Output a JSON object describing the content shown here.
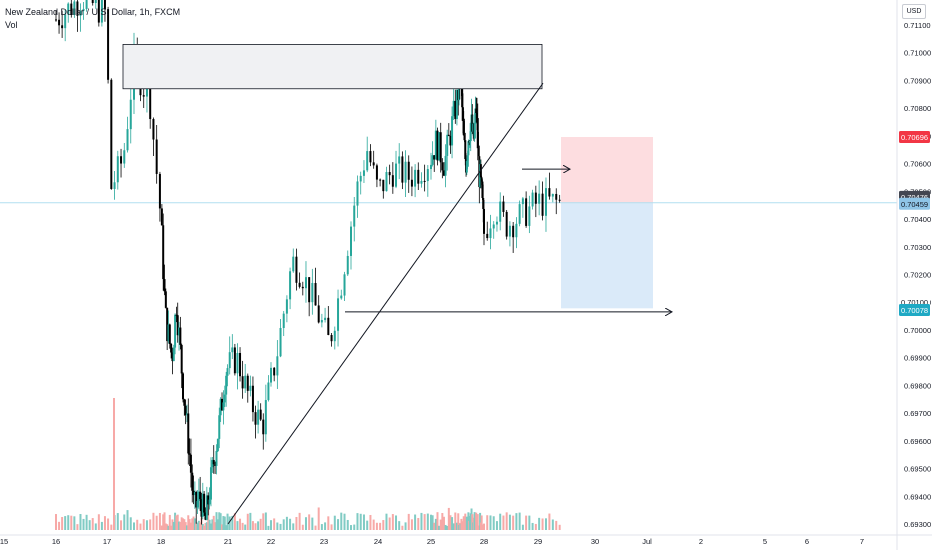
{
  "header": {
    "title": "New Zealand Dollar / U.S. Dollar, 1h, FXCM",
    "volume_label": "Vol",
    "currency_badge": "USD"
  },
  "colors": {
    "up": "#26a69a",
    "down": "#000000",
    "vol_up": "#80cbc4",
    "vol_down": "#f7a9a7",
    "stop_zone": "#fddde0",
    "target_zone": "#daeaf9",
    "box": "#f0f1f3",
    "current_line": "#b2dff0",
    "label_red": "#f23645",
    "label_dark": "#434651",
    "label_blue_light": "#8fc5e7",
    "label_blue": "#2196f3",
    "label_cyan": "#1fa9c4"
  },
  "chart_data": {
    "type": "candlestick",
    "symbol": "NZDUSD",
    "interval": "1h",
    "y_axis": {
      "ylim": [
        0.6926,
        0.7122
      ],
      "ticks": [
        "0.71100",
        "0.71000",
        "0.70900",
        "0.70800",
        "0.70700",
        "0.70600",
        "0.70500",
        "0.70400",
        "0.70300",
        "0.70200",
        "0.70100",
        "0.70000",
        "0.69900",
        "0.69800",
        "0.69700",
        "0.69600",
        "0.69500",
        "0.69400",
        "0.69300"
      ]
    },
    "x_axis": {
      "ticks": [
        "15",
        "16",
        "17",
        "18",
        "21",
        "22",
        "23",
        "24",
        "25",
        "28",
        "29",
        "30",
        "Jul",
        "2",
        "5",
        "6",
        "7"
      ]
    },
    "price_labels": {
      "stop": "0.70696",
      "last": "0.70476",
      "entry": "0.70459",
      "target": "0.70078",
      "hidden": "0.70100"
    },
    "levels": {
      "stop": 0.70696,
      "entry": 0.70459,
      "target": 0.70078,
      "last": 0.70476
    },
    "supply_zone": {
      "top": 0.7103,
      "bottom": 0.7087,
      "from": "17",
      "to": "29"
    },
    "horizontal_rays": [
      {
        "price": 0.7058,
        "from": "28",
        "direction": "right"
      },
      {
        "price": 0.70065,
        "from": "23",
        "direction": "right"
      }
    ],
    "trendline": {
      "from": {
        "x": "21",
        "price": 0.693
      },
      "to": {
        "x": "29",
        "price": 0.7089
      }
    },
    "path": [
      [
        16,
        0.7112
      ],
      [
        16.5,
        0.712
      ],
      [
        17,
        0.7114
      ],
      [
        17.05,
        0.705
      ],
      [
        17.3,
        0.7062
      ],
      [
        17.5,
        0.7096
      ],
      [
        17.8,
        0.7082
      ],
      [
        18,
        0.704
      ],
      [
        18.2,
        0.7005
      ],
      [
        18.5,
        0.699
      ],
      [
        18.7,
        0.701
      ],
      [
        19,
        0.698
      ],
      [
        19.3,
        0.6955
      ],
      [
        19.5,
        0.6935
      ],
      [
        19.8,
        0.694
      ],
      [
        20,
        0.693
      ],
      [
        20.3,
        0.6948
      ],
      [
        20.6,
        0.6965
      ],
      [
        20.9,
        0.6985
      ],
      [
        21.2,
        0.699
      ],
      [
        21.5,
        0.6975
      ],
      [
        21.8,
        0.6965
      ],
      [
        22.1,
        0.699
      ],
      [
        22.4,
        0.7025
      ],
      [
        22.6,
        0.702
      ],
      [
        22.9,
        0.7005
      ],
      [
        23.1,
        0.6995
      ],
      [
        23.3,
        0.7015
      ],
      [
        23.6,
        0.705
      ],
      [
        23.8,
        0.7065
      ],
      [
        24,
        0.705
      ],
      [
        24.3,
        0.7058
      ],
      [
        24.6,
        0.7055
      ],
      [
        24.9,
        0.706
      ],
      [
        25.2,
        0.7068
      ],
      [
        25.5,
        0.706
      ],
      [
        25.8,
        0.7075
      ],
      [
        26,
        0.7085
      ],
      [
        26.2,
        0.7094
      ],
      [
        26.4,
        0.707
      ],
      [
        26.6,
        0.706
      ],
      [
        26.8,
        0.707
      ],
      [
        27,
        0.7075
      ],
      [
        27.2,
        0.7068
      ],
      [
        27.4,
        0.708
      ],
      [
        27.6,
        0.7058
      ],
      [
        27.8,
        0.705
      ],
      [
        28,
        0.7035
      ],
      [
        28.2,
        0.7045
      ],
      [
        28.4,
        0.7038
      ],
      [
        28.6,
        0.704
      ],
      [
        28.8,
        0.7043
      ],
      [
        29,
        0.7046
      ]
    ]
  }
}
